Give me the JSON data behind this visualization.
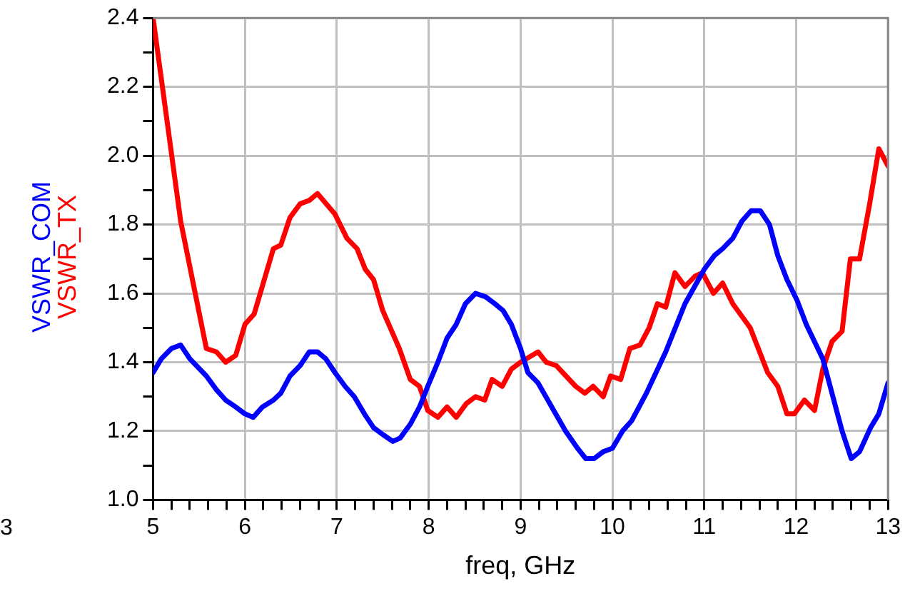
{
  "chart_data": {
    "type": "line",
    "xlabel": "freq, GHz",
    "annotations": [
      "3"
    ],
    "xlim": [
      5,
      13
    ],
    "xticks": [
      5,
      {
        "value": 5.2,
        "label": null
      },
      {
        "value": 5.4,
        "label": null
      },
      {
        "value": 5.6,
        "label": null
      },
      {
        "value": 5.8,
        "label": null
      },
      6,
      {
        "value": 6.2,
        "label": null
      },
      {
        "value": 6.4,
        "label": null
      },
      {
        "value": 6.6,
        "label": null
      },
      {
        "value": 6.8,
        "label": null
      },
      7,
      {
        "value": 7.2,
        "label": null
      },
      {
        "value": 7.4,
        "label": null
      },
      {
        "value": 7.6,
        "label": null
      },
      {
        "value": 7.8,
        "label": null
      },
      8,
      {
        "value": 8.2,
        "label": null
      },
      {
        "value": 8.4,
        "label": null
      },
      {
        "value": 8.6,
        "label": null
      },
      {
        "value": 8.8,
        "label": null
      },
      9,
      {
        "value": 9.2,
        "label": null
      },
      {
        "value": 9.4,
        "label": null
      },
      {
        "value": 9.6,
        "label": null
      },
      {
        "value": 9.8,
        "label": null
      },
      10,
      {
        "value": 10.2,
        "label": null
      },
      {
        "value": 10.4,
        "label": null
      },
      {
        "value": 10.6,
        "label": null
      },
      {
        "value": 10.8,
        "label": null
      },
      11,
      {
        "value": 11.2,
        "label": null
      },
      {
        "value": 11.4,
        "label": null
      },
      {
        "value": 11.6,
        "label": null
      },
      {
        "value": 11.8,
        "label": null
      },
      12,
      {
        "value": 12.2,
        "label": null
      },
      {
        "value": 12.4,
        "label": null
      },
      {
        "value": 12.6,
        "label": null
      },
      {
        "value": 12.8,
        "label": null
      },
      13
    ],
    "ylim": [
      1.0,
      2.4
    ],
    "yticks": [
      {
        "value": 1.0,
        "label": "1.0"
      },
      {
        "value": 1.1,
        "label": null
      },
      1.2,
      {
        "value": 1.3,
        "label": null
      },
      1.4,
      {
        "value": 1.5,
        "label": null
      },
      1.6,
      {
        "value": 1.7,
        "label": null
      },
      1.8,
      {
        "value": 1.9,
        "label": null
      },
      {
        "value": 2.0,
        "label": "2.0"
      },
      {
        "value": 2.1,
        "label": null
      },
      2.2,
      {
        "value": 2.3,
        "label": null
      },
      2.4
    ],
    "grid": true,
    "legend": false,
    "marker": "none",
    "line_style": "solid",
    "series": [
      {
        "name": "VSWR_COM",
        "color": "#0000ff",
        "x": [
          5.0,
          5.09,
          5.2,
          5.3,
          5.4,
          5.58,
          5.69,
          5.79,
          5.9,
          6.0,
          6.09,
          6.19,
          6.31,
          6.39,
          6.49,
          6.6,
          6.7,
          6.79,
          6.88,
          6.98,
          7.09,
          7.19,
          7.3,
          7.4,
          7.5,
          7.61,
          7.69,
          7.8,
          7.9,
          7.99,
          8.1,
          8.2,
          8.3,
          8.4,
          8.51,
          8.62,
          8.72,
          8.81,
          8.9,
          9.0,
          9.08,
          9.19,
          9.34,
          9.49,
          9.62,
          9.71,
          9.8,
          9.9,
          10.0,
          10.11,
          10.21,
          10.37,
          10.58,
          10.79,
          11.0,
          11.11,
          11.2,
          11.31,
          11.41,
          11.51,
          11.61,
          11.71,
          11.8,
          11.9,
          12.01,
          12.11,
          12.29,
          12.39,
          12.5,
          12.6,
          12.69,
          12.81,
          12.9,
          13.0
        ],
        "values": [
          1.37,
          1.41,
          1.44,
          1.45,
          1.41,
          1.36,
          1.32,
          1.29,
          1.27,
          1.25,
          1.24,
          1.27,
          1.29,
          1.31,
          1.36,
          1.39,
          1.43,
          1.43,
          1.41,
          1.37,
          1.33,
          1.3,
          1.25,
          1.21,
          1.19,
          1.17,
          1.18,
          1.22,
          1.27,
          1.33,
          1.4,
          1.47,
          1.51,
          1.57,
          1.6,
          1.59,
          1.57,
          1.55,
          1.51,
          1.44,
          1.37,
          1.34,
          1.27,
          1.2,
          1.15,
          1.12,
          1.12,
          1.14,
          1.15,
          1.2,
          1.23,
          1.31,
          1.43,
          1.57,
          1.67,
          1.71,
          1.73,
          1.76,
          1.81,
          1.84,
          1.84,
          1.8,
          1.71,
          1.64,
          1.58,
          1.51,
          1.41,
          1.31,
          1.2,
          1.12,
          1.14,
          1.21,
          1.25,
          1.34
        ]
      },
      {
        "name": "VSWR_TX",
        "color": "#ff0000",
        "x": [
          5.0,
          5.3,
          5.58,
          5.69,
          5.79,
          5.9,
          6.0,
          6.1,
          6.31,
          6.39,
          6.49,
          6.6,
          6.7,
          6.79,
          6.98,
          7.11,
          7.22,
          7.31,
          7.4,
          7.5,
          7.68,
          7.8,
          7.9,
          7.99,
          8.1,
          8.2,
          8.3,
          8.41,
          8.51,
          8.61,
          8.69,
          8.8,
          8.9,
          9.0,
          9.19,
          9.28,
          9.39,
          9.6,
          9.7,
          9.79,
          9.9,
          9.98,
          10.09,
          10.19,
          10.3,
          10.4,
          10.49,
          10.58,
          10.68,
          10.79,
          10.9,
          10.98,
          11.1,
          11.2,
          11.31,
          11.5,
          11.69,
          11.8,
          11.9,
          11.98,
          12.09,
          12.2,
          12.29,
          12.39,
          12.5,
          12.59,
          12.69,
          12.8,
          12.9,
          13.0
        ],
        "values": [
          2.4,
          1.81,
          1.44,
          1.43,
          1.4,
          1.42,
          1.51,
          1.54,
          1.73,
          1.74,
          1.82,
          1.86,
          1.87,
          1.89,
          1.83,
          1.76,
          1.73,
          1.67,
          1.64,
          1.55,
          1.44,
          1.35,
          1.33,
          1.26,
          1.24,
          1.27,
          1.24,
          1.28,
          1.3,
          1.29,
          1.35,
          1.33,
          1.38,
          1.4,
          1.43,
          1.4,
          1.39,
          1.33,
          1.31,
          1.33,
          1.3,
          1.36,
          1.35,
          1.44,
          1.45,
          1.5,
          1.57,
          1.56,
          1.66,
          1.62,
          1.65,
          1.66,
          1.6,
          1.63,
          1.57,
          1.5,
          1.37,
          1.33,
          1.25,
          1.25,
          1.29,
          1.26,
          1.38,
          1.46,
          1.49,
          1.7,
          1.7,
          1.86,
          2.02,
          1.97
        ]
      }
    ]
  }
}
